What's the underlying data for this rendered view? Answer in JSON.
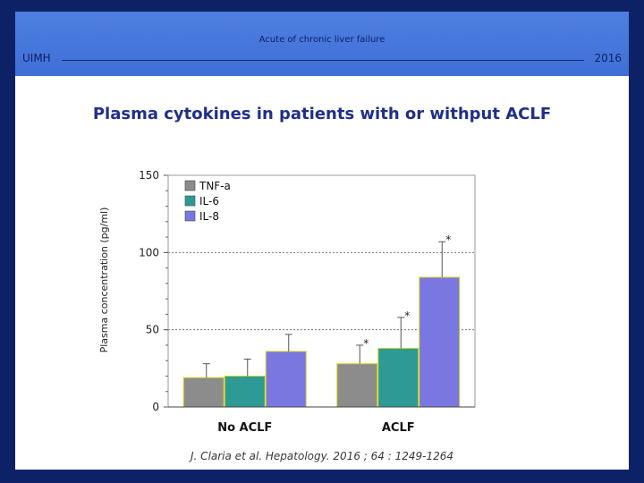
{
  "header": {
    "topic": "Acute of chronic liver failure",
    "organization": "UIMH",
    "year": "2016"
  },
  "slide_title": "Plasma cytokines in patients with or withput ACLF",
  "citation": "J. Claria et al. Hepatology. 2016 ; 64 : 1249-1264",
  "colors": {
    "background": "#0d2266",
    "header": "#4a7bdc",
    "tnf": "#8c8c8c",
    "il6": "#2e9a96",
    "il8": "#7b77e0",
    "title": "#1f2f8a"
  },
  "chart_data": {
    "type": "bar",
    "title": "Plasma cytokines in patients with or withput ACLF",
    "xlabel": "",
    "ylabel": "Plasma concentration (pg/ml)",
    "ylim": [
      0,
      150
    ],
    "yticks": [
      "0",
      "50",
      "100",
      "150"
    ],
    "gridlines": [
      50,
      100
    ],
    "legend_position": "top-left",
    "categories": [
      "No ACLF",
      "ACLF"
    ],
    "series": [
      {
        "name": "TNF-a",
        "color": "#8c8c8c",
        "values": [
          19,
          28
        ],
        "errors": [
          9,
          12
        ],
        "significance": [
          "",
          "*"
        ]
      },
      {
        "name": "IL-6",
        "color": "#2e9a96",
        "values": [
          20,
          38
        ],
        "errors": [
          11,
          20
        ],
        "significance": [
          "",
          "*"
        ]
      },
      {
        "name": "IL-8",
        "color": "#7b77e0",
        "values": [
          36,
          84
        ],
        "errors": [
          11,
          23
        ],
        "significance": [
          "",
          "*"
        ]
      }
    ]
  }
}
